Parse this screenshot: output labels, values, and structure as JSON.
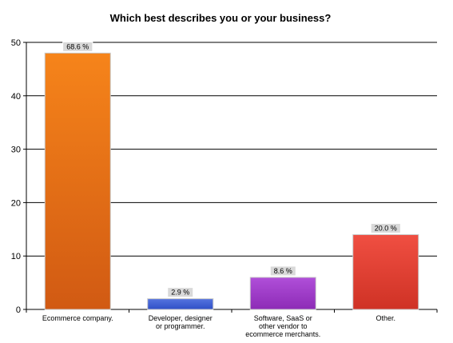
{
  "chart_data": {
    "type": "bar",
    "title": "Which best describes you or your business?",
    "xlabel": "",
    "ylabel": "",
    "ylim": [
      0,
      50
    ],
    "yticks": [
      0,
      10,
      20,
      30,
      40,
      50
    ],
    "grid": true,
    "legend": "none",
    "categories": [
      "Ecommerce company.",
      "Developer, designer or programmer.",
      "Software, SaaS or other vendor to ecommerce merchants.",
      "Other."
    ],
    "category_lines": [
      [
        "Ecommerce company."
      ],
      [
        "Developer, designer",
        "or programmer."
      ],
      [
        "Software, SaaS or",
        "other vendor to",
        "ecommerce merchants."
      ],
      [
        "Other."
      ]
    ],
    "values": [
      48,
      2,
      6,
      14
    ],
    "data_labels": [
      "68.6 %",
      "2.9 %",
      "8.6 %",
      "20.0 %"
    ],
    "colors": [
      {
        "top": "#f6841a",
        "bottom": "#d15a13"
      },
      {
        "top": "#5574e0",
        "bottom": "#2f4fc6"
      },
      {
        "top": "#b04fd9",
        "bottom": "#8d2bb6"
      },
      {
        "top": "#f04f42",
        "bottom": "#cf3225"
      }
    ]
  }
}
